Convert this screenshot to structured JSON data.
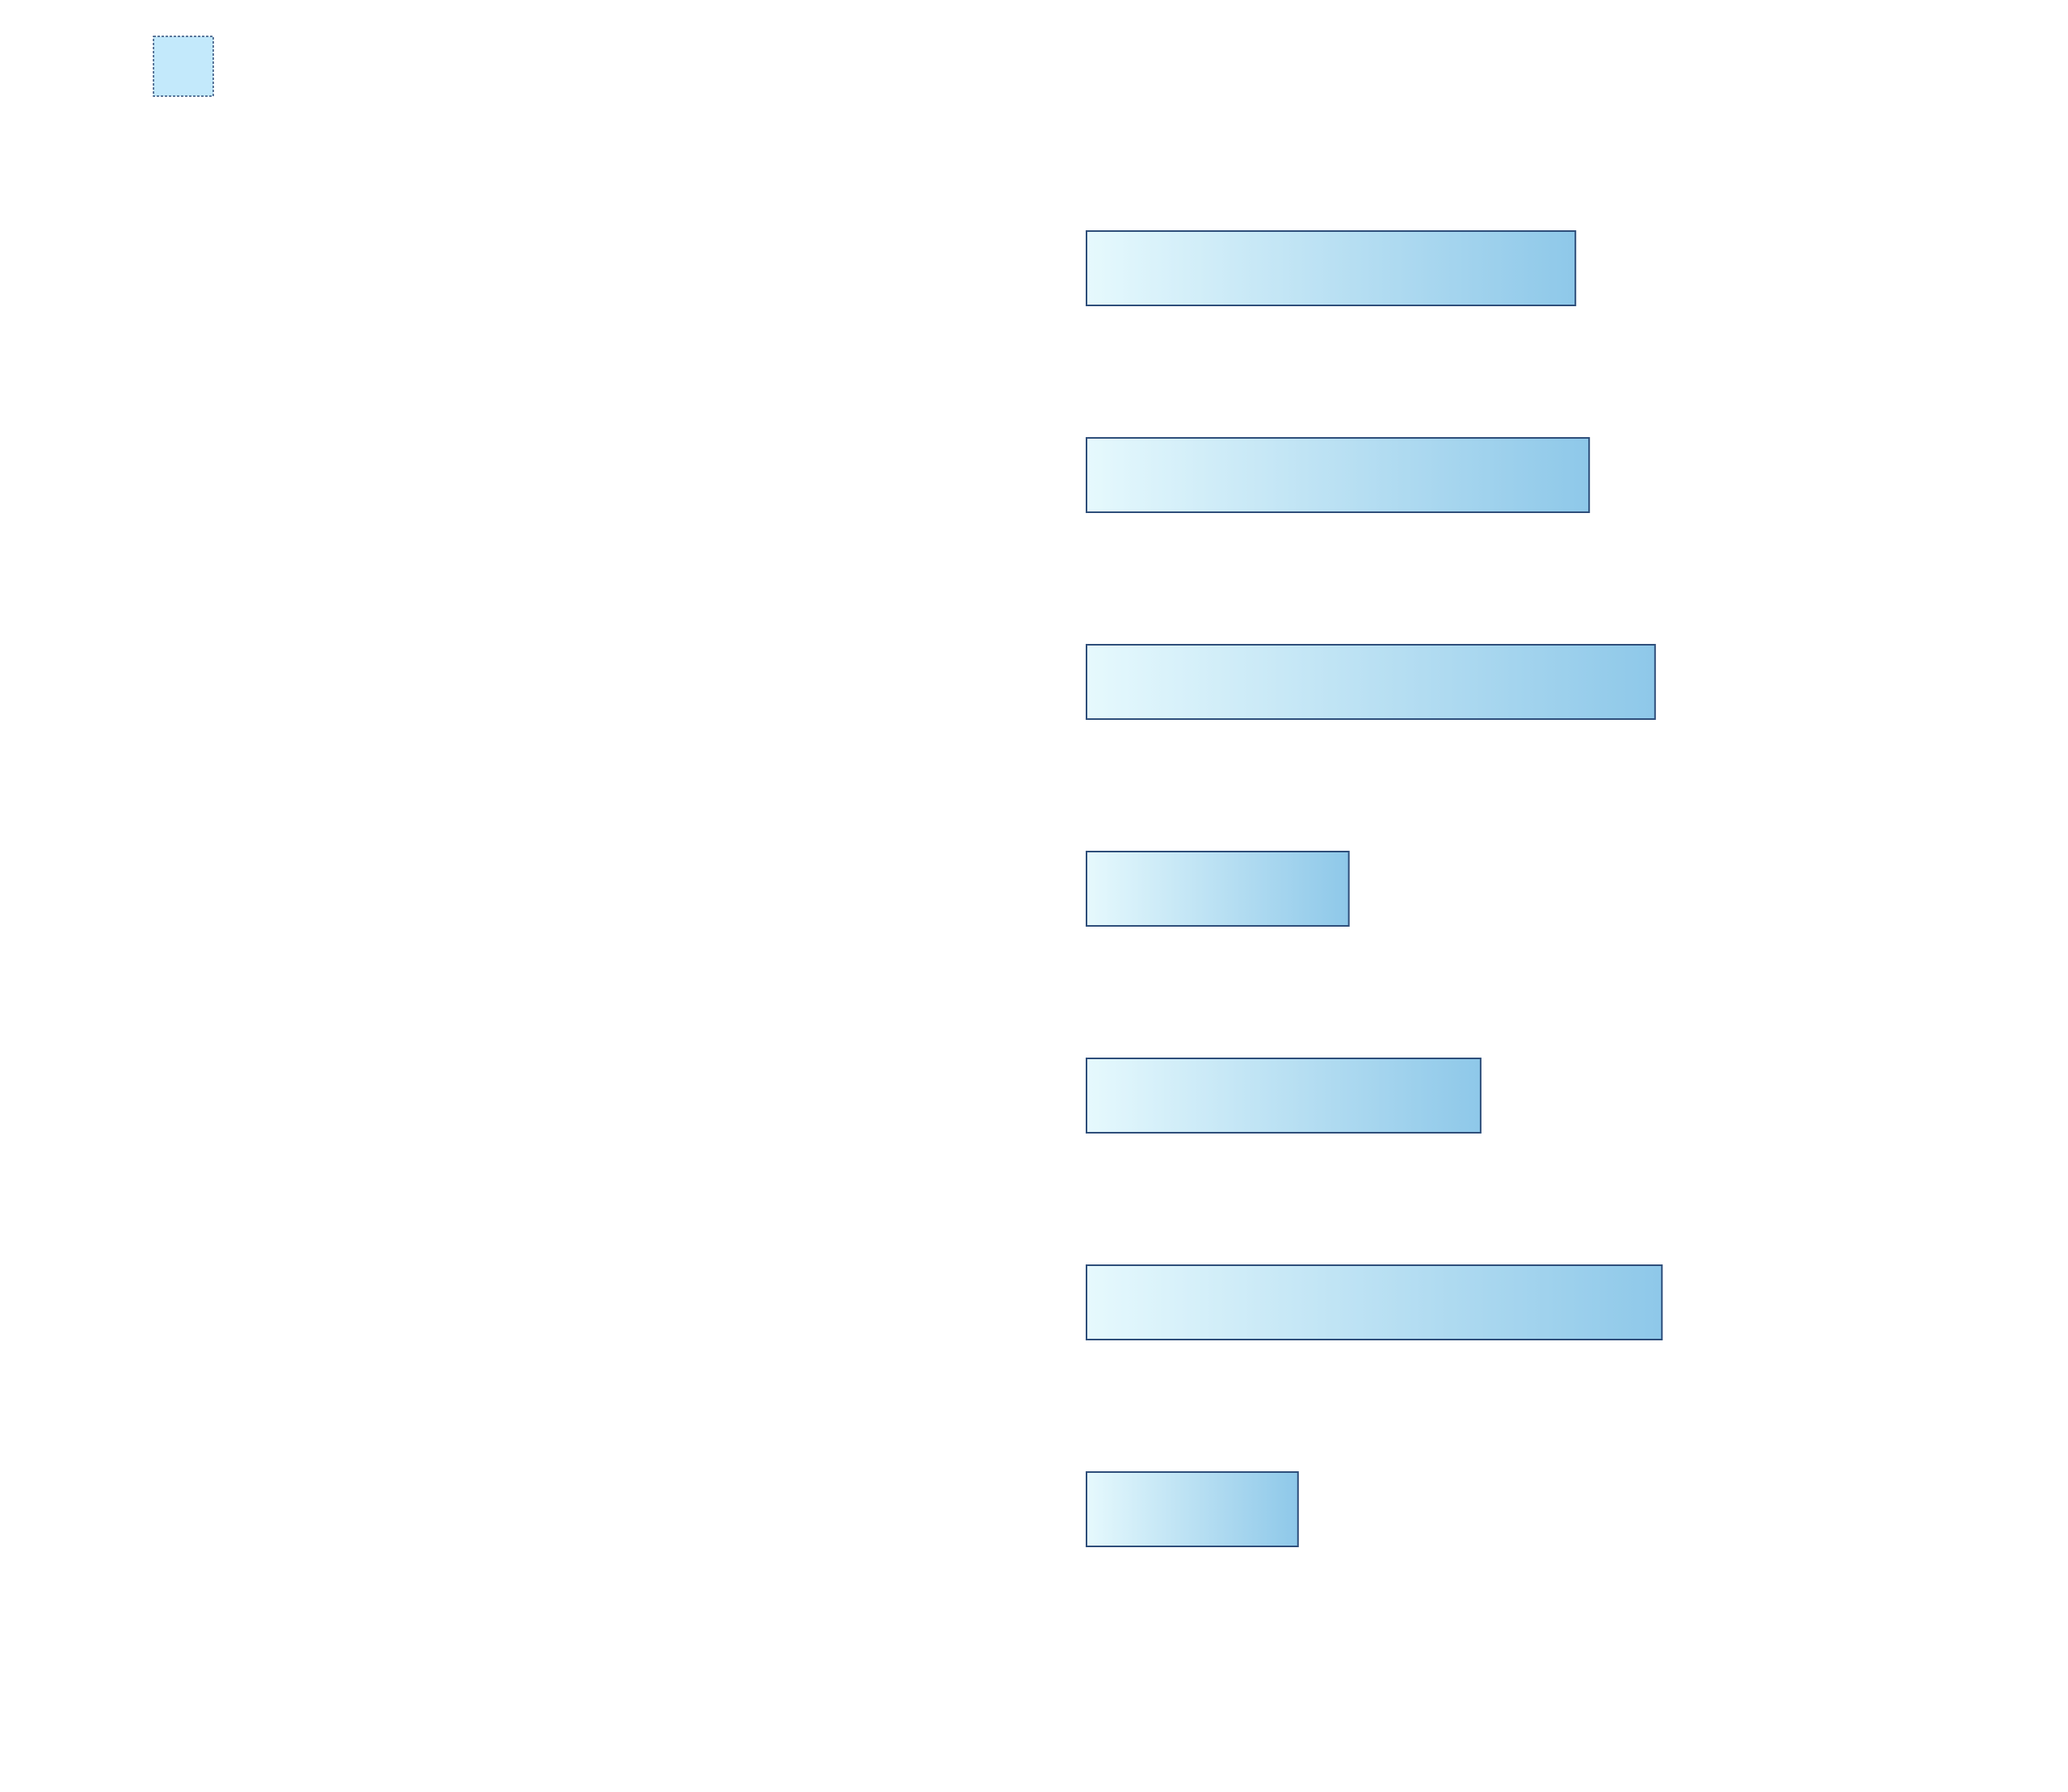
{
  "chart_data": {
    "type": "bar",
    "orientation": "horizontal",
    "categories": [
      "",
      "",
      "",
      "",
      "",
      "",
      ""
    ],
    "series": [
      {
        "values": [
          71.2,
          73.2,
          82.8,
          38.2,
          57.4,
          83.8,
          30.8
        ]
      }
    ],
    "xlim": [
      0,
      100
    ],
    "grid": false,
    "legend_position": "top-left",
    "colors": {
      "bar_gradient_start": "#e6f9fd",
      "bar_gradient_end": "#8ec8e9",
      "bar_outline": "#2e4e7a",
      "legend_fill": "#c3e9fb"
    }
  }
}
